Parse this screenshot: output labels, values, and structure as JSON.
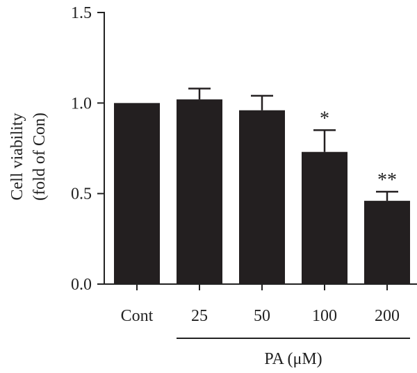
{
  "chart_data": {
    "type": "bar",
    "categories": [
      "Cont",
      "25",
      "50",
      "100",
      "200"
    ],
    "values": [
      1.0,
      1.02,
      0.96,
      0.73,
      0.46
    ],
    "errors": [
      0.0,
      0.06,
      0.08,
      0.12,
      0.05
    ],
    "annotations": [
      "",
      "",
      "",
      "*",
      "**"
    ],
    "ylabel": [
      "Cell viability",
      "(fold of Con)"
    ],
    "ylim": [
      0,
      1.5
    ],
    "yticks": [
      0.0,
      0.5,
      1.0,
      1.5
    ],
    "ytick_labels": [
      "0.0",
      "0.5",
      "1.0",
      "1.5"
    ],
    "group_label": "PA (μM)",
    "group_categories": [
      "25",
      "50",
      "100",
      "200"
    ],
    "grid": false,
    "bar_color": "#231f20"
  }
}
